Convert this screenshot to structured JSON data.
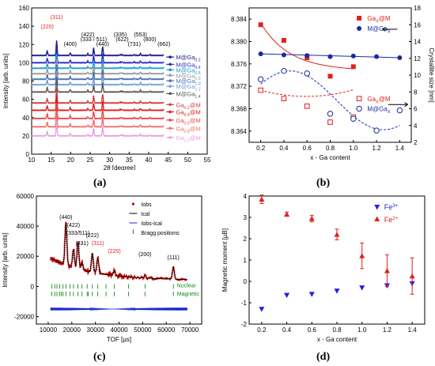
{
  "chart_data": [
    {
      "panel": "a",
      "type": "line",
      "caption": "(a)",
      "xlabel": "2θ [degree]",
      "ylabel": "Intensity [arb. units]",
      "xlim": [
        10,
        55
      ],
      "ylim": [
        0,
        160
      ],
      "xticks": [
        10,
        15,
        20,
        25,
        30,
        35,
        40,
        45,
        50,
        55
      ],
      "yticks": [
        0,
        20,
        40,
        60,
        80,
        100,
        120,
        140,
        160
      ],
      "peaks": [
        {
          "label": "(220)",
          "x": 14.0,
          "color": "#e02020"
        },
        {
          "label": "(311)",
          "x": 16.4,
          "color": "#e02020"
        },
        {
          "label": "(400)",
          "x": 19.9,
          "color": "#000000"
        },
        {
          "label": "(422)",
          "x": 24.4,
          "color": "#000000"
        },
        {
          "label": "(333 / 511)",
          "x": 25.9,
          "color": "#000000"
        },
        {
          "label": "(440)",
          "x": 28.2,
          "color": "#000000"
        },
        {
          "label": "(335)",
          "x": 32.7,
          "color": "#000000"
        },
        {
          "label": "(622)",
          "x": 33.2,
          "color": "#000000"
        },
        {
          "label": "(731)",
          "x": 36.3,
          "color": "#000000"
        },
        {
          "label": "(553)",
          "x": 37.9,
          "color": "#000000"
        },
        {
          "label": "(800)",
          "x": 40.3,
          "color": "#000000"
        },
        {
          "label": "(662)",
          "x": 43.9,
          "color": "#000000"
        }
      ],
      "series": [
        {
          "name": "M@Ga0.2",
          "base": 108,
          "color": "#1b1b8f"
        },
        {
          "name": "M@Ga0.4",
          "base": 100,
          "color": "#2a2acc"
        },
        {
          "name": "M@Ga0.6",
          "base": 94,
          "color": "#1f9fd0"
        },
        {
          "name": "M@Ga0.8",
          "base": 88,
          "color": "#9a9a9a"
        },
        {
          "name": "M@Ga1.0",
          "base": 82,
          "color": "#4a6fb5"
        },
        {
          "name": "M@Ga1.2",
          "base": 76,
          "color": "#6f9fd8"
        },
        {
          "name": "M@Ga1.4",
          "base": 68,
          "color": "#5a5a5a"
        },
        {
          "name": "Ga0.2@M",
          "base": 56,
          "color": "#d04040"
        },
        {
          "name": "Ga0.4@M",
          "base": 48,
          "color": "#e02020"
        },
        {
          "name": "Ga0.6@M",
          "base": 39,
          "color": "#e84848"
        },
        {
          "name": "Ga0.8@M",
          "base": 30,
          "color": "#f07070"
        },
        {
          "name": "Ga1.0@M",
          "base": 20,
          "color": "#e8a0e0"
        }
      ]
    },
    {
      "panel": "b",
      "type": "scatter",
      "caption": "(b)",
      "xlabel": "x - Ga content",
      "ylabel_right": "Crystallite size [nm]",
      "xlim": [
        0.1,
        1.5
      ],
      "ylim_left": [
        8.362,
        8.386
      ],
      "ylim_right": [
        2,
        18
      ],
      "xticks": [
        0.2,
        0.4,
        0.6,
        0.8,
        1.0,
        1.2,
        1.4
      ],
      "yticks_left": [
        "8.364",
        "8.368",
        "8.372",
        "8.376",
        "8.380",
        "8.384"
      ],
      "yticks_right": [
        2,
        4,
        6,
        8,
        10,
        12,
        14,
        16,
        18
      ],
      "series": [
        {
          "name": "GaX@M",
          "axis": "left",
          "marker": "square-filled",
          "color": "#e02020",
          "x": [
            0.2,
            0.4,
            0.6,
            0.8,
            1.0
          ],
          "y": [
            8.383,
            8.3802,
            8.3771,
            8.3738,
            8.3755
          ]
        },
        {
          "name": "M@GaX",
          "axis": "left",
          "marker": "circle-filled",
          "color": "#1a2aa0",
          "x": [
            0.2,
            0.4,
            0.6,
            0.8,
            1.0,
            1.2,
            1.4
          ],
          "y": [
            8.3778,
            8.3776,
            8.3775,
            8.3773,
            8.3774,
            8.3773,
            8.3771
          ]
        },
        {
          "name": "GaX@M",
          "axis": "right",
          "marker": "square-open",
          "color": "#e02020",
          "x": [
            0.2,
            0.4,
            0.6,
            0.8,
            1.0
          ],
          "y": [
            8.2,
            7.2,
            6.3,
            4.4,
            5.0
          ]
        },
        {
          "name": "M@GaX",
          "axis": "right",
          "marker": "circle-open",
          "color": "#1a2aa0",
          "x": [
            0.2,
            0.4,
            0.6,
            0.8,
            1.0,
            1.2,
            1.4
          ],
          "y": [
            9.5,
            10.5,
            10.2,
            5.4,
            4.8,
            3.4,
            5.8
          ]
        }
      ]
    },
    {
      "panel": "c",
      "type": "line",
      "caption": "(c)",
      "xlabel": "TOF [µs]",
      "ylabel": "Intensity [arb. units]",
      "xlim": [
        5000,
        75000
      ],
      "ylim": [
        -25000,
        60000
      ],
      "xticks": [
        10000,
        20000,
        30000,
        40000,
        50000,
        60000,
        70000
      ],
      "yticks": [
        -20000,
        0,
        20000,
        40000,
        60000
      ],
      "legend": [
        "Iobs",
        "Ical",
        "Iobs-Ical",
        "Bragg positions"
      ],
      "bragg_rows": [
        "Nuclear",
        "Magnetic"
      ],
      "peaks": [
        {
          "label": "(440)",
          "x": 17500,
          "color": "#000000"
        },
        {
          "label": "(422)",
          "x": 20700,
          "color": "#000000"
        },
        {
          "label": "(333/511)",
          "x": 22600,
          "color": "#000000"
        },
        {
          "label": "(331)",
          "x": 24300,
          "color": "#000000"
        },
        {
          "label": "(222)",
          "x": 28700,
          "color": "#000000"
        },
        {
          "label": "(311)",
          "x": 31000,
          "color": "#e02020"
        },
        {
          "label": "(220)",
          "x": 38000,
          "color": "#e02020"
        },
        {
          "label": "(200)",
          "x": 51000,
          "color": "#000000"
        },
        {
          "label": "(111)",
          "x": 63000,
          "color": "#000000"
        }
      ]
    },
    {
      "panel": "d",
      "type": "scatter",
      "caption": "(d)",
      "xlabel": "x - Ga content",
      "ylabel": "Magnetic moment [µB]",
      "xlim": [
        0.1,
        1.5
      ],
      "ylim": [
        -2,
        4
      ],
      "xticks": [
        0.2,
        0.4,
        0.6,
        0.8,
        1.0,
        1.2,
        1.4
      ],
      "yticks": [
        -2,
        -1,
        0,
        1,
        2,
        3,
        4
      ],
      "series": [
        {
          "name": "Fe3+",
          "marker": "triangle-down",
          "color": "#2020e0",
          "x": [
            0.2,
            0.4,
            0.6,
            0.8,
            1.0,
            1.2,
            1.4
          ],
          "y": [
            -1.3,
            -0.65,
            -0.6,
            -0.45,
            -0.3,
            -0.2,
            -0.1
          ]
        },
        {
          "name": "Fe2+",
          "marker": "triangle-up",
          "color": "#e02020",
          "x": [
            0.2,
            0.4,
            0.6,
            0.8,
            1.0,
            1.2,
            1.4
          ],
          "y": [
            3.85,
            3.15,
            2.95,
            2.2,
            1.2,
            0.5,
            0.25
          ],
          "err": [
            0.2,
            0.1,
            0.15,
            0.25,
            0.6,
            0.75,
            0.85
          ]
        }
      ]
    }
  ]
}
